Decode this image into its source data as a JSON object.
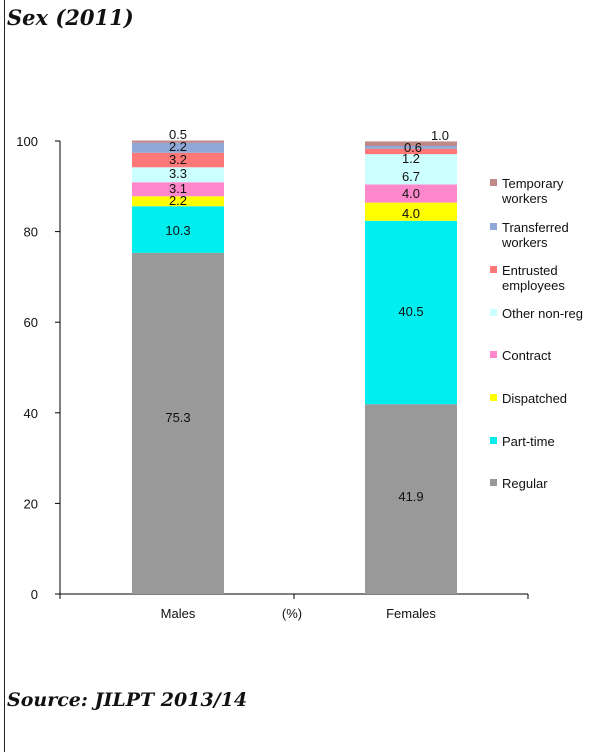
{
  "header": {
    "title": "Sex (2011)"
  },
  "footer": {
    "source": "Source:  JILPT 2013/14"
  },
  "chart_data": {
    "type": "bar",
    "stacked": true,
    "categories": [
      "Males",
      "Females"
    ],
    "x_unit_label": "(%)",
    "ylim": [
      0,
      100
    ],
    "yticks": [
      0,
      20,
      40,
      60,
      80,
      100
    ],
    "grid": false,
    "legend_position": "right",
    "series": [
      {
        "name": "Regular",
        "color": "#999999",
        "values": [
          75.3,
          41.9
        ],
        "labels": [
          "75.3",
          "41.9"
        ]
      },
      {
        "name": "Part-time",
        "color": "#00eeee",
        "values": [
          10.3,
          40.5
        ],
        "labels": [
          "10.3",
          "40.5"
        ]
      },
      {
        "name": "Dispatched",
        "color": "#ffff00",
        "values": [
          2.2,
          4.0
        ],
        "labels": [
          "2.2",
          "4.0"
        ]
      },
      {
        "name": "Contract",
        "color": "#ff88cc",
        "values": [
          3.1,
          4.0
        ],
        "labels": [
          "3.1",
          "4.0"
        ]
      },
      {
        "name": "Other non-reg",
        "color": "#ccffff",
        "values": [
          3.3,
          6.7
        ],
        "labels": [
          "3.3",
          "6.7"
        ]
      },
      {
        "name": "Entrusted employees",
        "legend_lines": [
          "Entrusted",
          "employees"
        ],
        "color": "#ff7777",
        "values": [
          3.2,
          1.2
        ],
        "labels": [
          "3.2",
          "1.2"
        ]
      },
      {
        "name": "Transferred workers",
        "legend_lines": [
          "Transferred",
          "workers"
        ],
        "color": "#8ea9d8",
        "values": [
          2.2,
          0.6
        ],
        "labels": [
          "2.2",
          "0.6"
        ]
      },
      {
        "name": "Temporary workers",
        "legend_lines": [
          "Temporary",
          "workers"
        ],
        "color": "#c08888",
        "values": [
          0.5,
          1.0
        ],
        "labels": [
          "0.5",
          "1.0"
        ]
      }
    ]
  }
}
